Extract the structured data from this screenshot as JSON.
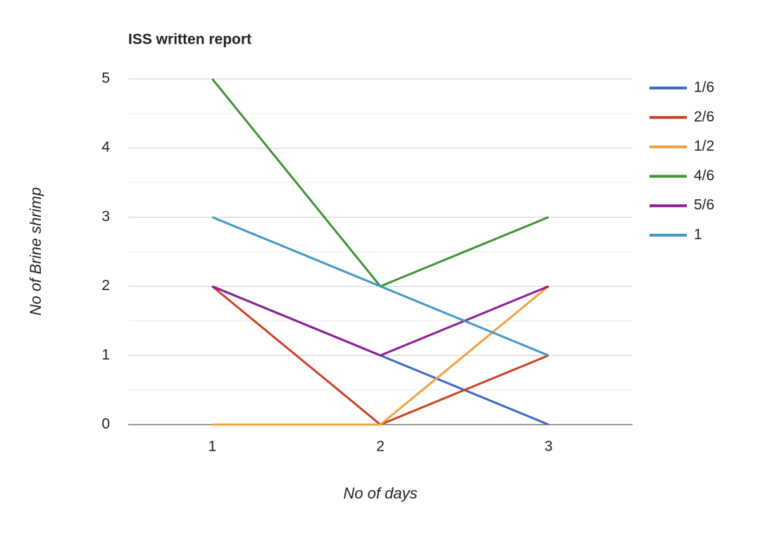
{
  "chart_data": {
    "type": "line",
    "title": "ISS written report",
    "x_label": "No of days",
    "y_label": "No of Brine shrimp",
    "categories": [
      "1",
      "2",
      "3"
    ],
    "series": [
      {
        "name": "1/6",
        "color": "#3f67c6",
        "values": [
          2,
          1,
          0
        ]
      },
      {
        "name": "2/6",
        "color": "#cc4125",
        "values": [
          2,
          0,
          1
        ]
      },
      {
        "name": "1/2",
        "color": "#f1a23c",
        "values": [
          0,
          0,
          2
        ]
      },
      {
        "name": "4/6",
        "color": "#3e9434",
        "values": [
          5,
          2,
          3
        ]
      },
      {
        "name": "5/6",
        "color": "#8e1e97",
        "values": [
          2,
          1,
          2
        ]
      },
      {
        "name": "1",
        "color": "#4298c3",
        "values": [
          3,
          2,
          1
        ]
      }
    ],
    "ylim": [
      0,
      5
    ],
    "yticks": [
      0,
      1,
      2,
      3,
      4,
      5
    ],
    "grid": true,
    "minor_grid": true,
    "legend": "right"
  }
}
